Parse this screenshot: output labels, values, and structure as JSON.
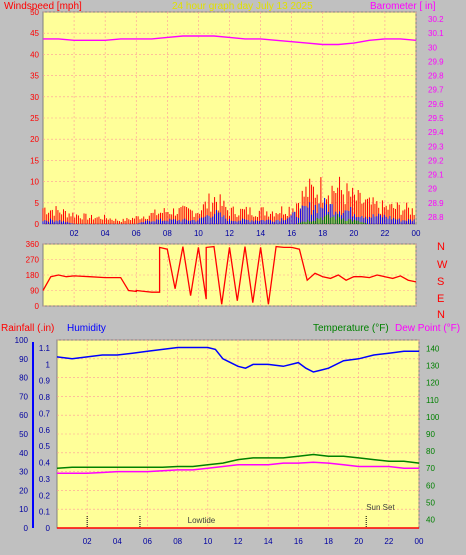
{
  "colors": {
    "background": "#c0c0c0",
    "plot_bg": "#ffff99",
    "grid": "#ff9999",
    "wind": "#ff0000",
    "gust": "#ff0000",
    "wind_avg": "#0000ff",
    "wind_low": "#008000",
    "barometer": "#ff00ff",
    "direction": "#ff0000",
    "humidity": "#0000ff",
    "temperature": "#008000",
    "dewpoint": "#ff00ff",
    "rain_axis": "#0000ff",
    "temp_axis": "#008000",
    "title": "#e0e000"
  },
  "chart_data": [
    {
      "type": "line",
      "id": "wind_baro",
      "title": "24 hour graph day   July 13 2025",
      "left_axis_label": "Windspeed [mph]",
      "right_axis_label": "Barometer [ in]",
      "x_ticks": [
        "02",
        "04",
        "06",
        "08",
        "10",
        "12",
        "14",
        "16",
        "18",
        "20",
        "22",
        "00"
      ],
      "left_ticks": [
        "0",
        "5",
        "10",
        "15",
        "20",
        "25",
        "30",
        "35",
        "40",
        "45",
        "50"
      ],
      "right_ticks": [
        "28.8",
        "28.9",
        "29",
        "29.1",
        "29.2",
        "29.3",
        "29.4",
        "29.5",
        "29.6",
        "29.7",
        "29.8",
        "29.9",
        "30",
        "30.1",
        "30.2"
      ],
      "ylim_left": [
        0,
        50
      ],
      "ylim_right": [
        28.75,
        30.25
      ],
      "x_hours": [
        0,
        24
      ],
      "series": [
        {
          "role": "barometer",
          "x": [
            0,
            1,
            2,
            3,
            4,
            5,
            6,
            7,
            8,
            9,
            10,
            11,
            12,
            13,
            14,
            15,
            16,
            17,
            18,
            19,
            20,
            21,
            22,
            23,
            24
          ],
          "values": [
            30.06,
            30.06,
            30.05,
            30.05,
            30.05,
            30.06,
            30.06,
            30.06,
            30.07,
            30.08,
            30.08,
            30.08,
            30.07,
            30.06,
            30.06,
            30.05,
            30.04,
            30.03,
            30.02,
            30.02,
            30.03,
            30.05,
            30.06,
            30.06,
            30.05
          ]
        },
        {
          "role": "gust",
          "x": [
            0,
            1,
            2,
            3,
            4,
            5,
            6,
            7,
            8,
            9,
            10,
            11,
            12,
            13,
            14,
            15,
            16,
            17,
            18,
            19,
            20,
            21,
            22,
            23,
            24
          ],
          "values": [
            5,
            4,
            3,
            2,
            2,
            1,
            2,
            3,
            4,
            4,
            4,
            8,
            4,
            4,
            4,
            4,
            5,
            10,
            11,
            11,
            8,
            6,
            5,
            5,
            4
          ]
        },
        {
          "role": "wind_avg",
          "x": [
            0,
            1,
            2,
            3,
            4,
            5,
            6,
            7,
            8,
            9,
            10,
            11,
            12,
            13,
            14,
            15,
            16,
            17,
            18,
            19,
            20,
            21,
            22,
            23,
            24
          ],
          "values": [
            1,
            1,
            0,
            0,
            0,
            0,
            0,
            1,
            1,
            1,
            1,
            3,
            1,
            1,
            1,
            1,
            2,
            4,
            5,
            4,
            3,
            2,
            2,
            1,
            1
          ]
        },
        {
          "role": "wind_low",
          "x": [
            0,
            1,
            2,
            3,
            4,
            5,
            6,
            7,
            8,
            9,
            10,
            11,
            12,
            13,
            14,
            15,
            16,
            17,
            18,
            19,
            20,
            21,
            22,
            23,
            24
          ],
          "values": [
            0,
            0,
            0,
            0,
            0,
            0,
            0,
            0,
            0,
            0,
            0,
            0,
            0,
            0,
            0,
            0,
            0,
            1,
            2,
            2,
            1,
            0,
            0,
            0,
            0
          ]
        }
      ]
    },
    {
      "type": "line",
      "id": "direction",
      "left_ticks": [
        "0",
        "90",
        "180",
        "270",
        "360"
      ],
      "right_labels": [
        "N",
        "W",
        "S",
        "E",
        "N"
      ],
      "ylim": [
        0,
        360
      ],
      "series": [
        {
          "role": "direction",
          "x": [
            0,
            0.5,
            1,
            1.5,
            2,
            3,
            4,
            5,
            5.5,
            6,
            6,
            6.5,
            7,
            7.5,
            7.5,
            8,
            8.5,
            9,
            9.5,
            10,
            10.5,
            10.5,
            11,
            11.5,
            12,
            12.5,
            13,
            13.5,
            14,
            14.5,
            15,
            15.5,
            16,
            16.5,
            17,
            17.5,
            18,
            18.5,
            19,
            19.5,
            20,
            20.5,
            21,
            21.5,
            22,
            22.5,
            23,
            23.5,
            24
          ],
          "values": [
            90,
            170,
            180,
            170,
            175,
            170,
            165,
            165,
            90,
            85,
            90,
            85,
            80,
            80,
            340,
            330,
            100,
            345,
            60,
            340,
            40,
            340,
            345,
            10,
            340,
            30,
            345,
            20,
            340,
            10,
            345,
            340,
            340,
            330,
            150,
            190,
            170,
            160,
            180,
            150,
            170,
            170,
            165,
            180,
            170,
            160,
            175,
            150,
            140
          ]
        }
      ]
    },
    {
      "type": "line",
      "id": "temp_hum",
      "labels": [
        "Rainfall (.in)",
        "Humidity",
        "Temperature (°F)",
        "Dew Point (°F)"
      ],
      "x_ticks": [
        "02",
        "04",
        "06",
        "08",
        "10",
        "12",
        "14",
        "16",
        "18",
        "20",
        "22",
        "00"
      ],
      "humidity_ticks": [
        "0",
        "10",
        "20",
        "30",
        "40",
        "50",
        "60",
        "70",
        "80",
        "90",
        "100"
      ],
      "rain_ticks": [
        "0",
        "0.1",
        "0.2",
        "0.3",
        "0.4",
        "0.5",
        "0.6",
        "0.7",
        "0.8",
        "0.9",
        "1",
        "1.1"
      ],
      "temp_ticks": [
        "40",
        "50",
        "60",
        "70",
        "80",
        "90",
        "100",
        "110",
        "120",
        "130",
        "140"
      ],
      "ylim_humidity": [
        0,
        100
      ],
      "ylim_temp": [
        35,
        145
      ],
      "annotations": [
        {
          "text": "Lowtide",
          "x": 8.0
        },
        {
          "text": "Sun Set",
          "x": 20.5
        }
      ],
      "rain_markers": [
        2.0,
        5.5,
        20.5
      ],
      "series": [
        {
          "name": "Humidity",
          "role": "humidity",
          "x": [
            0,
            1,
            2,
            3,
            4,
            5,
            6,
            7,
            8,
            9,
            9.5,
            10,
            10.5,
            11,
            11.5,
            12,
            12.5,
            13,
            14,
            15,
            16,
            16.5,
            17,
            17.5,
            18,
            19,
            20,
            21,
            22,
            23,
            24
          ],
          "values": [
            91,
            90,
            91,
            92,
            92,
            93,
            94,
            95,
            96,
            96,
            96,
            96,
            95,
            90,
            88,
            86,
            85,
            87,
            87,
            86,
            88,
            85,
            83,
            84,
            85,
            89,
            90,
            92,
            93,
            94,
            94
          ]
        },
        {
          "name": "Temperature",
          "role": "temperature",
          "x": [
            0,
            1,
            2,
            3,
            4,
            5,
            6,
            7,
            8,
            9,
            10,
            11,
            12,
            13,
            14,
            15,
            16,
            17,
            18,
            19,
            20,
            21,
            22,
            23,
            24
          ],
          "values": [
            70,
            70.5,
            70.5,
            70.5,
            70.5,
            70.5,
            70.5,
            70.5,
            71,
            71,
            72,
            73,
            75,
            76,
            76,
            76,
            77,
            78,
            77,
            77,
            76,
            75,
            74,
            74,
            73
          ]
        },
        {
          "name": "Dew Point",
          "role": "dewpoint",
          "x": [
            0,
            1,
            2,
            3,
            4,
            5,
            6,
            7,
            8,
            9,
            10,
            11,
            12,
            13,
            14,
            15,
            16,
            17,
            18,
            19,
            20,
            21,
            22,
            23,
            24
          ],
          "values": [
            67,
            67,
            67,
            67.5,
            68,
            68,
            68,
            68.5,
            69,
            69,
            70,
            71,
            72,
            72,
            72,
            73,
            73,
            73.5,
            73,
            72,
            71,
            71,
            71,
            70,
            70
          ]
        }
      ]
    }
  ]
}
